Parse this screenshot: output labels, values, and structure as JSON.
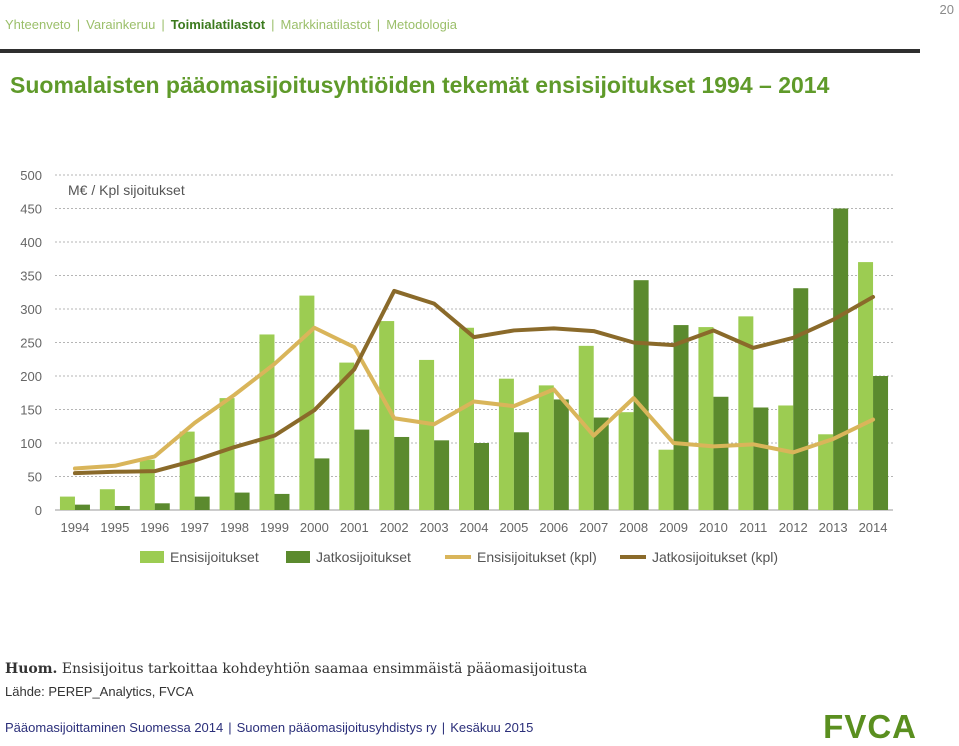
{
  "page_number": "20",
  "nav": {
    "items": [
      {
        "label": "Yhteenveto",
        "active": false
      },
      {
        "label": "Varainkeruu",
        "active": false
      },
      {
        "label": "Toimialatilastot",
        "active": true
      },
      {
        "label": "Markkinatilastot",
        "active": false
      },
      {
        "label": "Metodologia",
        "active": false
      }
    ]
  },
  "title": "Suomalaisten pääomasijoitusyhtiöiden tekemät ensisijoitukset 1994 – 2014",
  "chart_data": {
    "type": "bar",
    "unit_label": "M€ / Kpl sijoitukset",
    "ylim": [
      0,
      500
    ],
    "yticks": [
      0,
      50,
      100,
      150,
      200,
      250,
      300,
      350,
      400,
      450,
      500
    ],
    "grid": true,
    "categories": [
      "1994",
      "1995",
      "1996",
      "1997",
      "1998",
      "1999",
      "2000",
      "2001",
      "2002",
      "2003",
      "2004",
      "2005",
      "2006",
      "2007",
      "2008",
      "2009",
      "2010",
      "2011",
      "2012",
      "2013",
      "2014"
    ],
    "series": [
      {
        "name": "Ensisijoitukset",
        "kind": "bar",
        "color": "#9ccc52",
        "values": [
          20,
          31,
          75,
          117,
          167,
          262,
          320,
          220,
          282,
          224,
          272,
          196,
          186,
          245,
          146,
          90,
          273,
          289,
          156,
          113,
          370
        ]
      },
      {
        "name": "Jatkosijoitukset",
        "kind": "bar",
        "color": "#5b8a2e",
        "values": [
          8,
          6,
          10,
          20,
          26,
          24,
          77,
          120,
          109,
          104,
          100,
          116,
          165,
          138,
          343,
          276,
          169,
          153,
          331,
          450,
          200
        ]
      },
      {
        "name": "Ensisijoitukset (kpl)",
        "kind": "line",
        "color": "#d9b55a",
        "values": [
          62,
          66,
          80,
          130,
          172,
          218,
          272,
          243,
          137,
          128,
          162,
          155,
          180,
          111,
          167,
          100,
          95,
          98,
          86,
          106,
          135
        ]
      },
      {
        "name": "Jatkosijoitukset (kpl)",
        "kind": "line",
        "color": "#8a6a2a",
        "values": [
          55,
          57,
          58,
          74,
          94,
          111,
          149,
          210,
          327,
          308,
          258,
          268,
          271,
          267,
          250,
          246,
          268,
          242,
          257,
          284,
          318
        ]
      }
    ]
  },
  "note": {
    "bold": "Huom.",
    "text": " Ensisijoitus tarkoittaa kohdeyhtiön saamaa ensimmäistä pääomasijoitusta"
  },
  "source": "Lähde: PEREP_Analytics, FVCA",
  "footer": {
    "part1": "Pääomasijoittaminen Suomessa 2014",
    "part2": "Suomen pääomasijoitusyhdistys ry",
    "part3": "Kesäkuu 2015"
  },
  "logo": "FVCA"
}
